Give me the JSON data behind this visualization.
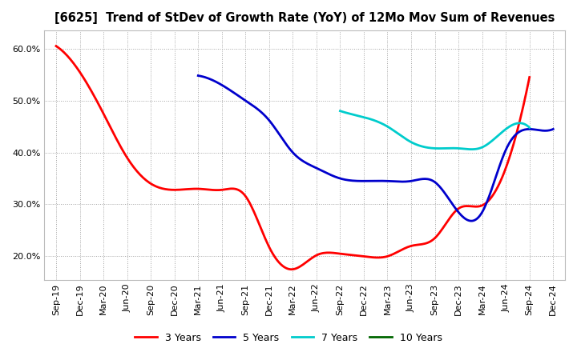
{
  "title": "[6625]  Trend of StDev of Growth Rate (YoY) of 12Mo Mov Sum of Revenues",
  "background_color": "#ffffff",
  "grid_color": "#999999",
  "ylim": [
    0.155,
    0.635
  ],
  "yticks": [
    0.2,
    0.3,
    0.4,
    0.5,
    0.6
  ],
  "x_labels": [
    "Sep-19",
    "Dec-19",
    "Mar-20",
    "Jun-20",
    "Sep-20",
    "Dec-20",
    "Mar-21",
    "Jun-21",
    "Sep-21",
    "Dec-21",
    "Mar-22",
    "Jun-22",
    "Sep-22",
    "Dec-22",
    "Mar-23",
    "Jun-23",
    "Sep-23",
    "Dec-23",
    "Mar-24",
    "Jun-24",
    "Sep-24",
    "Dec-24"
  ],
  "series": {
    "3 Years": {
      "color": "#ff0000",
      "data_x": [
        0,
        1,
        2,
        3,
        4,
        5,
        6,
        7,
        8,
        9,
        10,
        11,
        12,
        13,
        14,
        15,
        16,
        17,
        18,
        19,
        20
      ],
      "data_y": [
        0.605,
        0.555,
        0.475,
        0.39,
        0.34,
        0.328,
        0.33,
        0.328,
        0.316,
        0.218,
        0.175,
        0.202,
        0.205,
        0.2,
        0.2,
        0.22,
        0.235,
        0.292,
        0.298,
        0.37,
        0.545
      ]
    },
    "5 Years": {
      "color": "#0000cc",
      "data_x": [
        6,
        7,
        8,
        9,
        10,
        11,
        12,
        13,
        14,
        15,
        16,
        17,
        18,
        19,
        20,
        21
      ],
      "data_y": [
        0.548,
        0.53,
        0.5,
        0.462,
        0.4,
        0.37,
        0.35,
        0.345,
        0.345,
        0.345,
        0.343,
        0.285,
        0.285,
        0.405,
        0.445,
        0.445
      ]
    },
    "7 Years": {
      "color": "#00cccc",
      "data_x": [
        12,
        13,
        14,
        15,
        16,
        17,
        18,
        19,
        20
      ],
      "data_y": [
        0.48,
        0.468,
        0.45,
        0.42,
        0.408,
        0.408,
        0.41,
        0.445,
        0.448
      ]
    },
    "10 Years": {
      "color": "#006600",
      "data_x": [],
      "data_y": []
    }
  },
  "legend_order": [
    "3 Years",
    "5 Years",
    "7 Years",
    "10 Years"
  ]
}
